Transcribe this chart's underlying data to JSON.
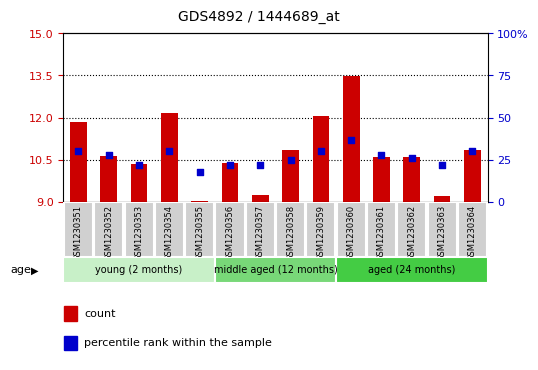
{
  "title": "GDS4892 / 1444689_at",
  "samples": [
    "GSM1230351",
    "GSM1230352",
    "GSM1230353",
    "GSM1230354",
    "GSM1230355",
    "GSM1230356",
    "GSM1230357",
    "GSM1230358",
    "GSM1230359",
    "GSM1230360",
    "GSM1230361",
    "GSM1230362",
    "GSM1230363",
    "GSM1230364"
  ],
  "count_values": [
    11.85,
    10.65,
    10.35,
    12.15,
    9.05,
    10.4,
    9.25,
    10.85,
    12.05,
    13.48,
    10.62,
    10.62,
    9.2,
    10.85
  ],
  "percentile_values": [
    30,
    28,
    22,
    30,
    18,
    22,
    22,
    25,
    30,
    37,
    28,
    26,
    22,
    30
  ],
  "y_min": 9,
  "y_max": 15,
  "y_ticks_left": [
    9,
    10.5,
    12,
    13.5,
    15
  ],
  "y_ticks_right": [
    0,
    25,
    50,
    75,
    100
  ],
  "bar_color": "#cc0000",
  "square_color": "#0000cc",
  "groups": [
    {
      "label": "young (2 months)",
      "start": 0,
      "end": 5
    },
    {
      "label": "middle aged (12 months)",
      "start": 5,
      "end": 9
    },
    {
      "label": "aged (24 months)",
      "start": 9,
      "end": 14
    }
  ],
  "group_colors": [
    "#c8f0c8",
    "#78d878",
    "#44cc44"
  ],
  "age_label": "age",
  "legend_count": "count",
  "legend_pct": "percentile rank within the sample",
  "tick_label_color_left": "#cc0000",
  "tick_label_color_right": "#0000cc",
  "xtick_bg_color": "#d0d0d0",
  "xtick_border_color": "#ffffff"
}
